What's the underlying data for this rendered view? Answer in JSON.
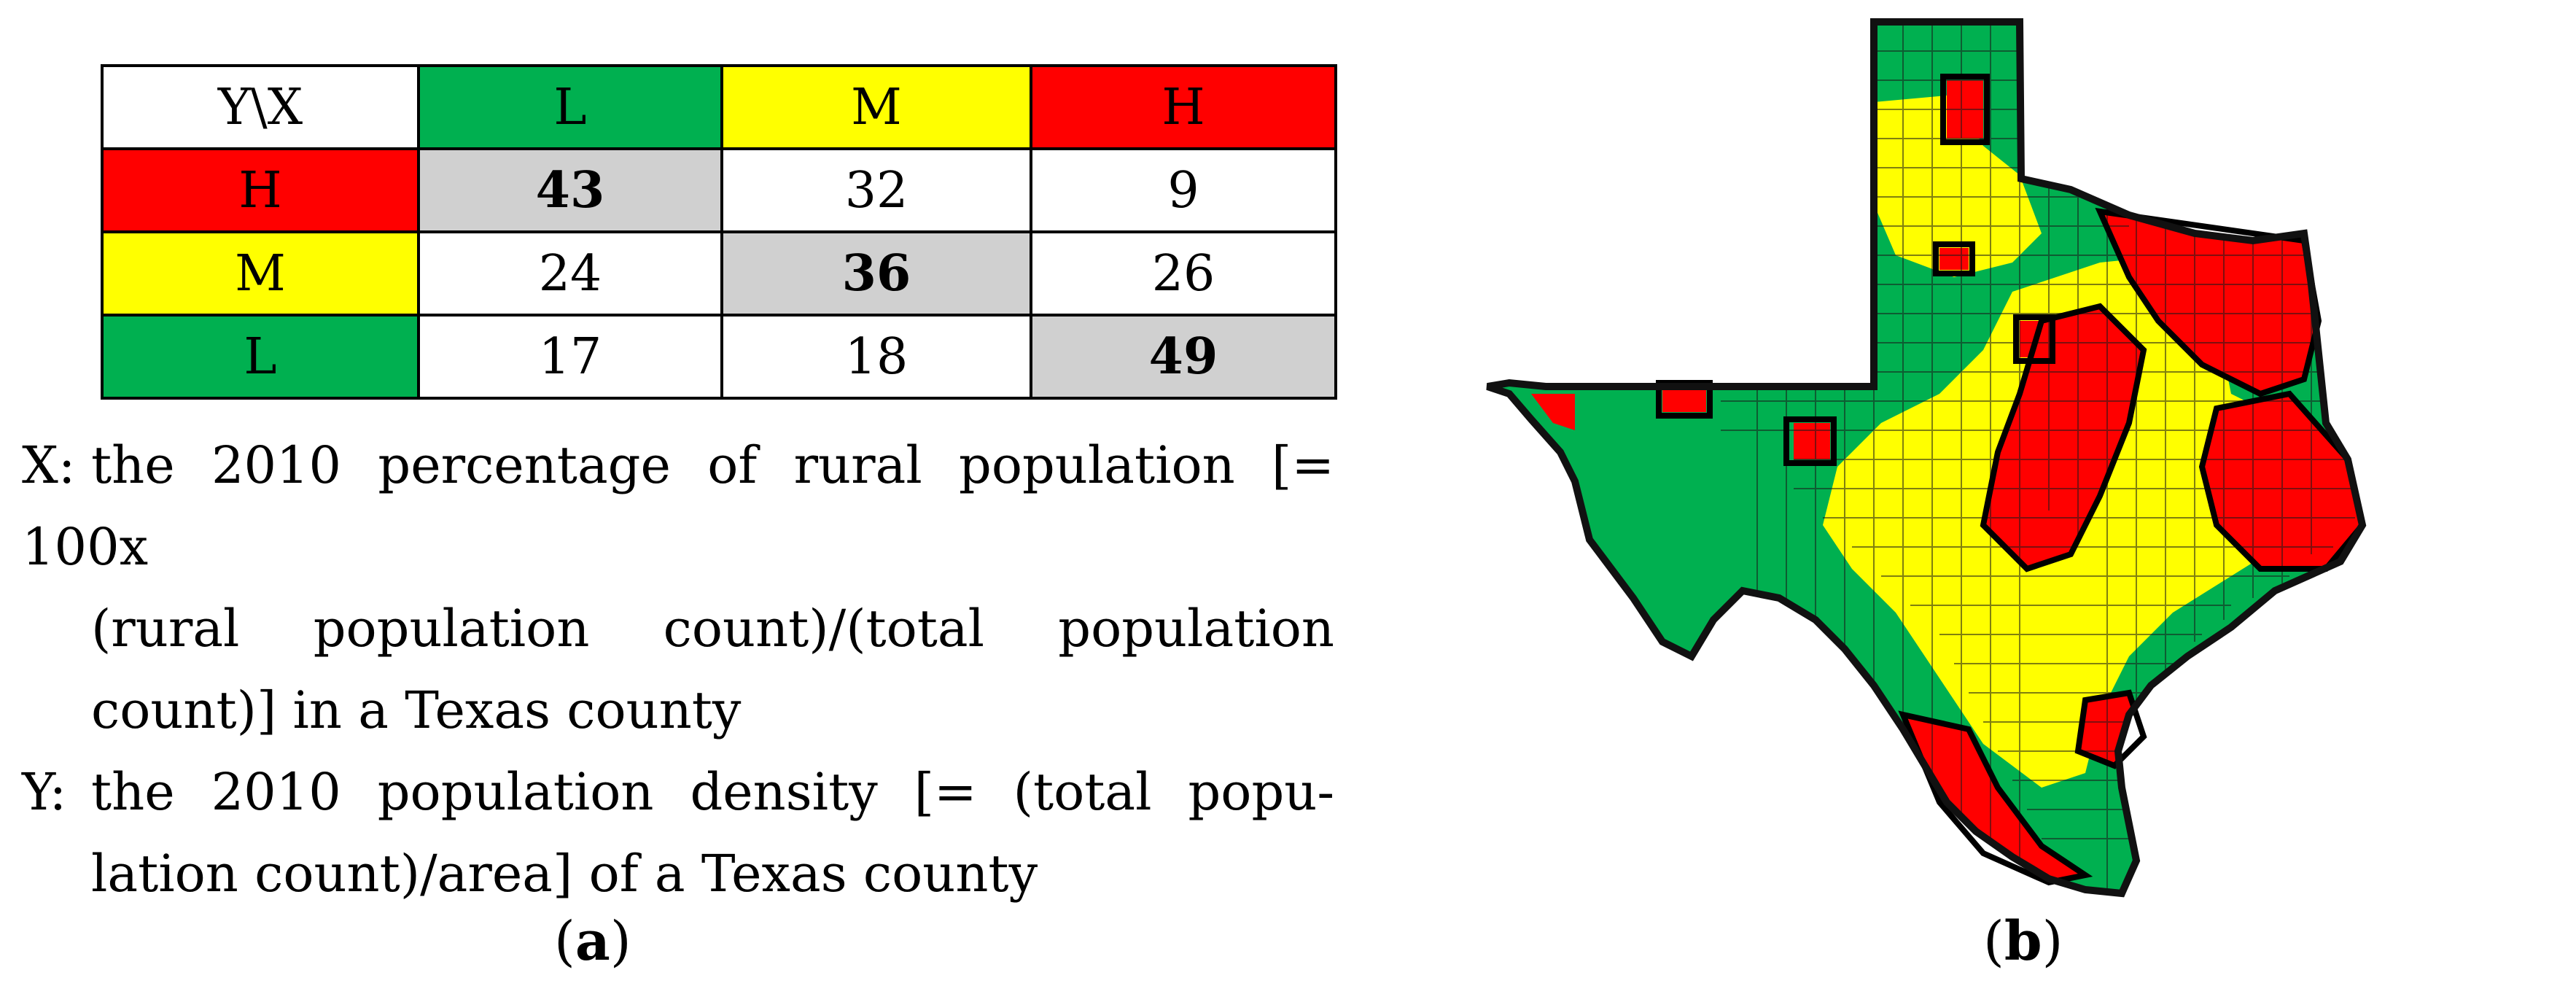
{
  "figure": {
    "panel_a": {
      "label_text": "a",
      "table": {
        "corner": "Y\\X",
        "column_headers": [
          {
            "text": "L",
            "color": "#00b050"
          },
          {
            "text": "M",
            "color": "#ffff00"
          },
          {
            "text": "H",
            "color": "#ff0000"
          }
        ],
        "rows": [
          {
            "header": "H",
            "color": "#ff0000",
            "cells": [
              "43",
              "32",
              "9"
            ],
            "diagonal_index": 0
          },
          {
            "header": "M",
            "color": "#ffff00",
            "cells": [
              "24",
              "36",
              "26"
            ],
            "diagonal_index": 1
          },
          {
            "header": "L",
            "color": "#00b050",
            "cells": [
              "17",
              "18",
              "49"
            ],
            "diagonal_index": 2
          }
        ],
        "diagonal_color": "#d0d0d0"
      },
      "notes": {
        "x_label": "X:",
        "x_line1": "the 2010 percentage of rural population [= 100x",
        "x_line2": "(rural population count)/(total population",
        "x_line3": "count)] in a Texas county",
        "y_label": "Y:",
        "y_line1": "the 2010 population density [= (total popu-",
        "y_line2": "lation count)/area] of a Texas county"
      }
    },
    "panel_b": {
      "label_text": "b",
      "map_colors": {
        "low": "#00b050",
        "medium": "#ffff00",
        "high": "#ff0000"
      }
    }
  }
}
